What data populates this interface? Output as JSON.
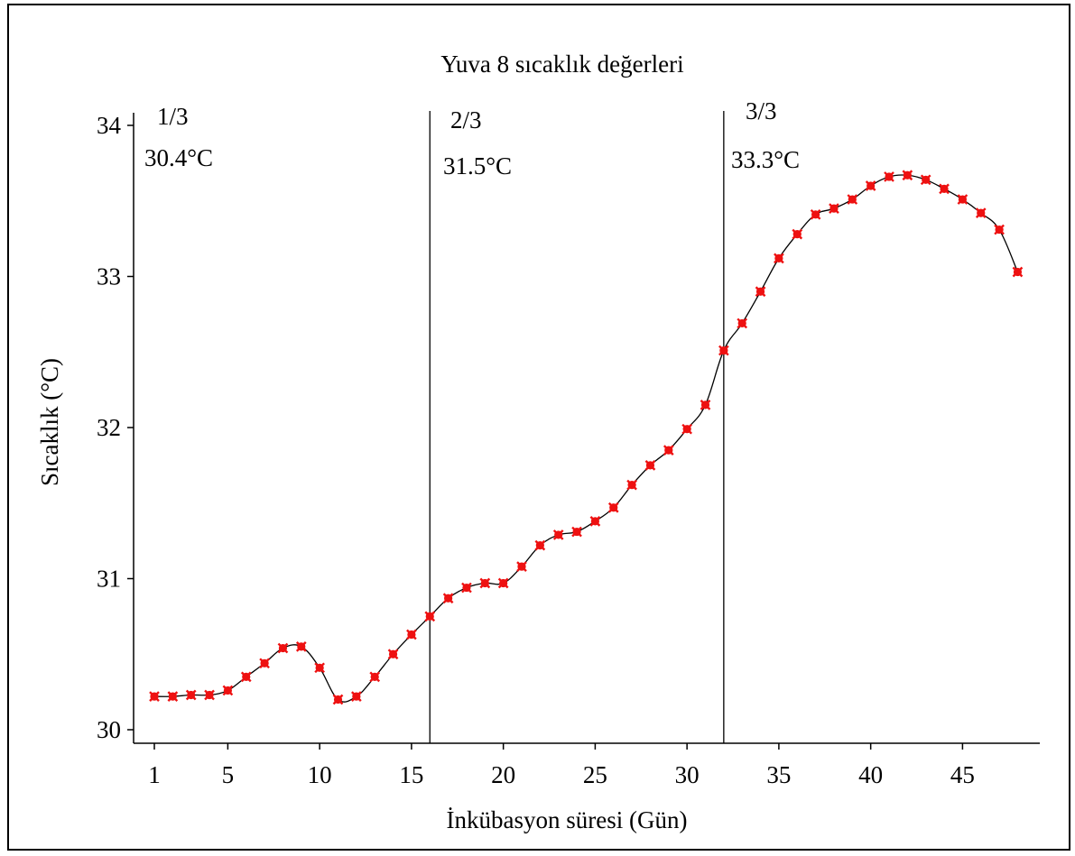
{
  "chart_data": {
    "type": "line",
    "title": "Yuva 8 sıcaklık değerleri",
    "xlabel": "İnkübasyon süresi (Gün)",
    "ylabel": "Sıcaklık (°C)",
    "xlim": [
      0.5,
      49
    ],
    "ylim": [
      29.98,
      34.05
    ],
    "xticks": [
      1,
      5,
      10,
      15,
      20,
      25,
      30,
      35,
      40,
      45
    ],
    "yticks": [
      30,
      31,
      32,
      33,
      34
    ],
    "grid": false,
    "marker_color": "#ee1111",
    "line_color": "#000000",
    "x": [
      1,
      2,
      3,
      4,
      5,
      6,
      7,
      8,
      9,
      10,
      11,
      12,
      13,
      14,
      15,
      16,
      17,
      18,
      19,
      20,
      21,
      22,
      23,
      24,
      25,
      26,
      27,
      28,
      29,
      30,
      31,
      32,
      33,
      34,
      35,
      36,
      37,
      38,
      39,
      40,
      41,
      42,
      43,
      44,
      45,
      46,
      47,
      48
    ],
    "values": [
      30.22,
      30.22,
      30.23,
      30.23,
      30.26,
      30.35,
      30.44,
      30.54,
      30.55,
      30.41,
      30.2,
      30.22,
      30.35,
      30.5,
      30.63,
      30.75,
      30.87,
      30.94,
      30.97,
      30.97,
      31.08,
      31.22,
      31.29,
      31.31,
      31.38,
      31.47,
      31.62,
      31.75,
      31.85,
      31.99,
      32.15,
      32.51,
      32.69,
      32.9,
      33.12,
      33.28,
      33.41,
      33.45,
      33.51,
      33.6,
      33.66,
      33.67,
      33.64,
      33.58,
      33.51,
      33.42,
      33.31,
      33.03
    ],
    "dividers": [
      {
        "x": 16,
        "fraction": "1/3",
        "mean": "30.4°C"
      },
      {
        "x": 32,
        "fraction": "2/3",
        "mean": "31.5°C"
      },
      {
        "x": null,
        "fraction": "3/3",
        "mean": "33.3°C"
      }
    ]
  }
}
